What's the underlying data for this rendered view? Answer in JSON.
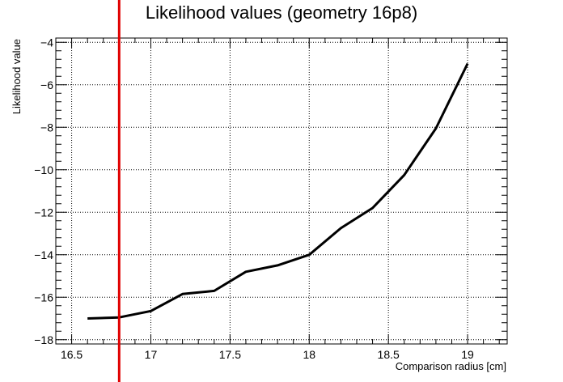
{
  "chart_data": {
    "type": "line",
    "title": "Likelihood values (geometry 16p8)",
    "xlabel": "Comparison radius [cm]",
    "ylabel": "Likelihood value",
    "xlim": [
      16.4,
      19.25
    ],
    "ylim": [
      -18.2,
      -3.8
    ],
    "grid": true,
    "x_ticks": [
      16.5,
      17,
      17.5,
      18,
      18.5,
      19
    ],
    "x_tick_labels": [
      "16.5",
      "17",
      "17.5",
      "18",
      "18.5",
      "19"
    ],
    "y_ticks": [
      -18,
      -16,
      -14,
      -12,
      -10,
      -8,
      -6,
      -4
    ],
    "y_tick_labels": [
      "−18",
      "−16",
      "−14",
      "−12",
      "−10",
      "−8",
      "−6",
      "−4"
    ],
    "series": [
      {
        "color": "#000000",
        "x": [
          16.6,
          16.8,
          17.0,
          17.2,
          17.4,
          17.6,
          17.8,
          18.0,
          18.2,
          18.4,
          18.6,
          18.8,
          19.0
        ],
        "y": [
          -17.0,
          -16.95,
          -16.65,
          -15.85,
          -15.7,
          -14.8,
          -14.5,
          -14.0,
          -12.75,
          -11.8,
          -10.25,
          -8.05,
          -5.0
        ]
      }
    ],
    "vertical_marker": {
      "x": 16.8,
      "color": "#e00000"
    }
  }
}
